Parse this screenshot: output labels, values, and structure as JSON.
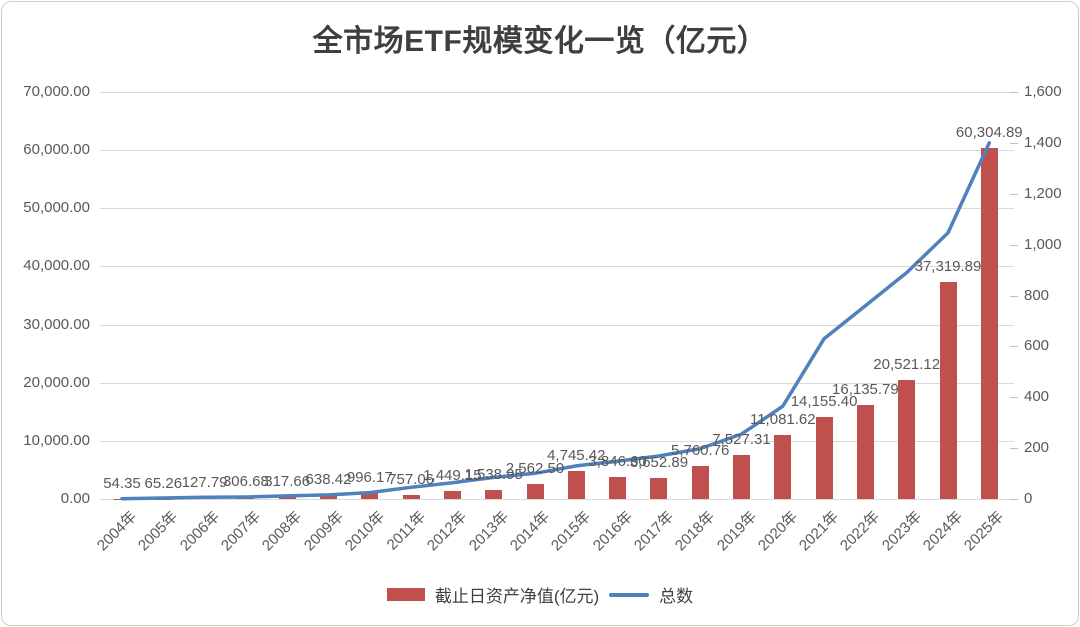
{
  "title": "全市场ETF规模变化一览（亿元）",
  "chart_data": {
    "type": "bar",
    "subtype": "bar-line-combo",
    "title": "全市场ETF规模变化一览（亿元）",
    "categories": [
      "2004年",
      "2005年",
      "2006年",
      "2007年",
      "2008年",
      "2009年",
      "2010年",
      "2011年",
      "2012年",
      "2013年",
      "2014年",
      "2015年",
      "2016年",
      "2017年",
      "2018年",
      "2019年",
      "2020年",
      "2021年",
      "2022年",
      "2023年",
      "2024年",
      "2025年"
    ],
    "series": [
      {
        "name": "截止日资产净值(亿元)",
        "chart": "bar",
        "axis": "left",
        "color": "#c0504d",
        "values": [
          54.35,
          65.26,
          127.79,
          306.68,
          317.66,
          638.42,
          996.17,
          757.06,
          1449.15,
          1538.95,
          2562.5,
          4745.42,
          3846.6,
          3652.89,
          5760.76,
          7527.31,
          11081.62,
          14155.4,
          16135.79,
          20521.12,
          37319.89,
          60304.89
        ],
        "labels": [
          "54.35",
          "65.26",
          "127.79",
          "306.68",
          "317.66",
          "638.42",
          "996.17",
          "757.06",
          "1,449.15",
          "1,538.95",
          "2,562.50",
          "4,745.42",
          "3,846.60",
          "3,652.89",
          "5,760.76",
          "7,527.31",
          "11,081.62",
          "14,155.40",
          "16,135.79",
          "20,521.12",
          "37,319.89",
          "60,304.89"
        ]
      },
      {
        "name": "总数",
        "chart": "line",
        "axis": "right",
        "color": "#4f81bd",
        "values": [
          1,
          4,
          7,
          8,
          12,
          16,
          25,
          46,
          64,
          85,
          101,
          130,
          149,
          169,
          198,
          255,
          365,
          630,
          760,
          890,
          1046,
          1400
        ]
      }
    ],
    "left_axis": {
      "min": 0,
      "max": 70000,
      "step": 10000,
      "tick_labels": [
        "0.00",
        "10,000.00",
        "20,000.00",
        "30,000.00",
        "40,000.00",
        "50,000.00",
        "60,000.00",
        "70,000.00"
      ]
    },
    "right_axis": {
      "min": 0,
      "max": 1600,
      "step": 200,
      "tick_labels": [
        "0",
        "200",
        "400",
        "600",
        "800",
        "1,000",
        "1,200",
        "1,400",
        "1,600"
      ]
    },
    "grid": true,
    "legend_position": "bottom"
  },
  "legend": {
    "bar_label": "截止日资产净值(亿元)",
    "line_label": "总数"
  },
  "colors": {
    "bar": "#c0504d",
    "line": "#4f81bd",
    "grid": "#d9d9d9",
    "axis_text": "#595959",
    "title_text": "#3f3f3f"
  }
}
